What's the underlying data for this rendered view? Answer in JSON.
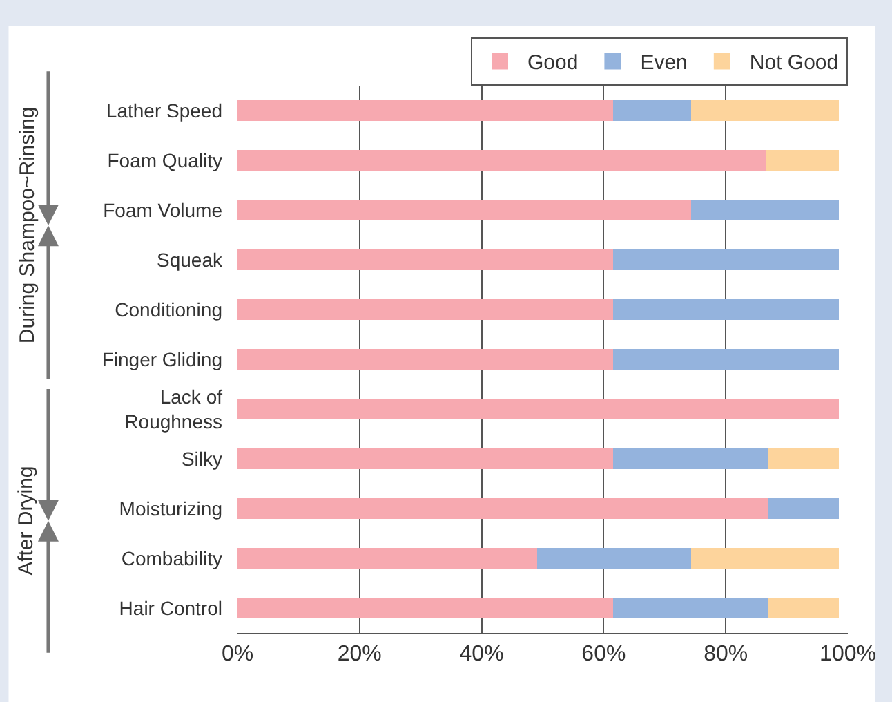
{
  "chart_data": {
    "type": "bar",
    "orientation": "horizontal",
    "stacked": true,
    "categories": [
      "Lather Speed",
      "Foam Quality",
      "Foam Volume",
      "Squeak",
      "Conditioning",
      "Finger Gliding",
      "Lack of\nRoughness",
      "Silky",
      "Moisturizing",
      "Combability",
      "Hair Control"
    ],
    "series": [
      {
        "name": "Good",
        "color": "#f7a9b0",
        "values": [
          61.5,
          86.7,
          74.3,
          61.5,
          61.5,
          61.5,
          98.5,
          61.5,
          86.9,
          49.1,
          61.5
        ]
      },
      {
        "name": "Even",
        "color": "#94b3dd",
        "values": [
          12.8,
          null,
          24.2,
          37,
          37,
          37,
          null,
          25.4,
          11.6,
          25.2,
          25.4
        ]
      },
      {
        "name": "Not Good",
        "color": "#fdd49c",
        "values": [
          24.2,
          11.8,
          null,
          null,
          null,
          null,
          null,
          11.6,
          null,
          24.2,
          11.6
        ]
      }
    ],
    "xlim": [
      0,
      100
    ],
    "xticks": [
      {
        "value": 0,
        "label": "0%"
      },
      {
        "value": 20,
        "label": "20%"
      },
      {
        "value": 40,
        "label": "40%"
      },
      {
        "value": 60,
        "label": "60%"
      },
      {
        "value": 80,
        "label": "80%"
      },
      {
        "value": 100,
        "label": "100%"
      }
    ],
    "grid": "x",
    "legend": "top right",
    "annotations": [
      "During Shampoo~Rinsing",
      "After Drying"
    ]
  }
}
